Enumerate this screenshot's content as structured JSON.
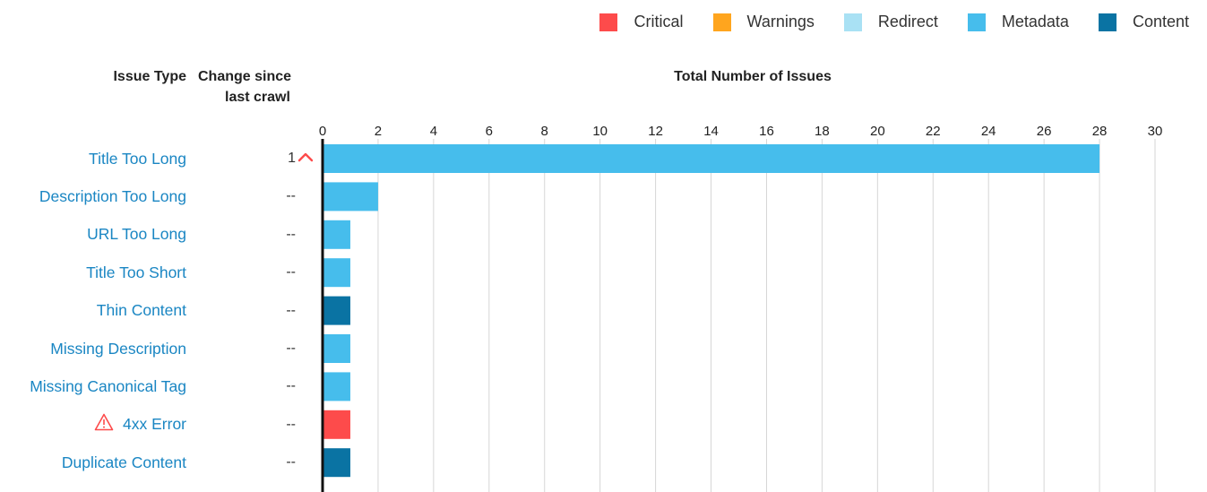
{
  "legend": [
    {
      "label": "Critical",
      "color": "#fd4b4b"
    },
    {
      "label": "Warnings",
      "color": "#ffa51e"
    },
    {
      "label": "Redirect",
      "color": "#a9e1f4"
    },
    {
      "label": "Metadata",
      "color": "#46bdec"
    },
    {
      "label": "Content",
      "color": "#0a73a3"
    }
  ],
  "headers": {
    "issue_type": "Issue Type",
    "change_line1": "Change since",
    "change_line2": "last crawl",
    "total": "Total Number of Issues"
  },
  "chart_data": {
    "type": "bar",
    "orientation": "horizontal",
    "title": "Total Number of Issues",
    "xlim": [
      0,
      30
    ],
    "ticks": [
      0,
      2,
      4,
      6,
      8,
      10,
      12,
      14,
      16,
      18,
      20,
      22,
      24,
      26,
      28,
      30
    ],
    "grid": true,
    "legend_position": "top-right",
    "rows": [
      {
        "label": "Title Too Long",
        "value": 28,
        "category": "Metadata",
        "change": "1",
        "trend": "up",
        "warning_icon": false
      },
      {
        "label": "Description Too Long",
        "value": 2,
        "category": "Metadata",
        "change": "--",
        "trend": "",
        "warning_icon": false
      },
      {
        "label": "URL Too Long",
        "value": 1,
        "category": "Metadata",
        "change": "--",
        "trend": "",
        "warning_icon": false
      },
      {
        "label": "Title Too Short",
        "value": 1,
        "category": "Metadata",
        "change": "--",
        "trend": "",
        "warning_icon": false
      },
      {
        "label": "Thin Content",
        "value": 1,
        "category": "Content",
        "change": "--",
        "trend": "",
        "warning_icon": false
      },
      {
        "label": "Missing Description",
        "value": 1,
        "category": "Metadata",
        "change": "--",
        "trend": "",
        "warning_icon": false
      },
      {
        "label": "Missing Canonical Tag",
        "value": 1,
        "category": "Metadata",
        "change": "--",
        "trend": "",
        "warning_icon": false
      },
      {
        "label": "4xx Error",
        "value": 1,
        "category": "Critical",
        "change": "--",
        "trend": "",
        "warning_icon": true
      },
      {
        "label": "Duplicate Content",
        "value": 1,
        "category": "Content",
        "change": "--",
        "trend": "",
        "warning_icon": false
      }
    ]
  }
}
